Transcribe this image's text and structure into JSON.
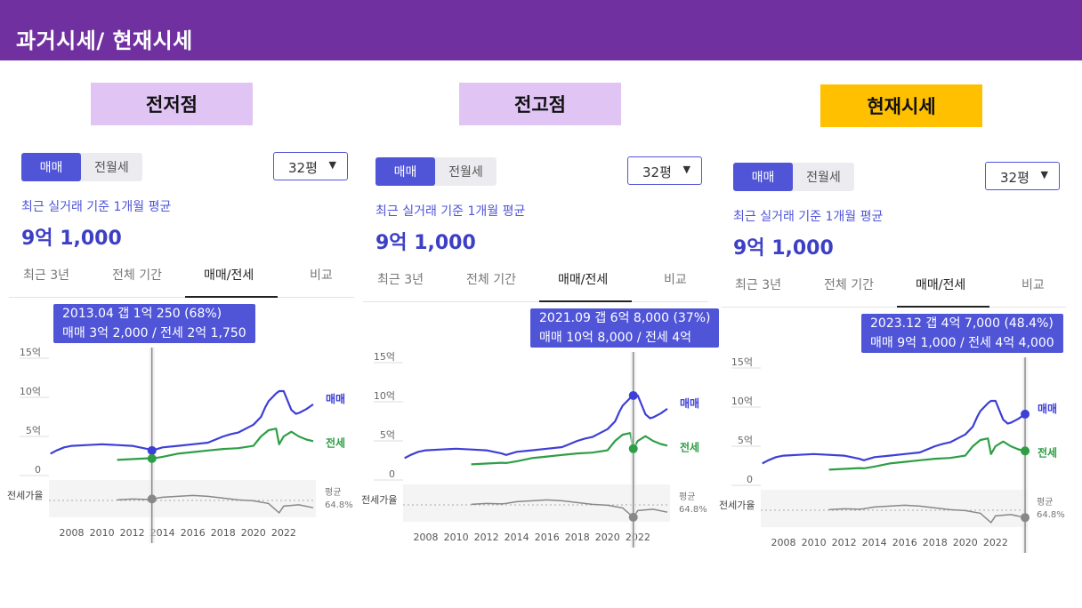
{
  "header": {
    "title": "과거시세/ 현재시세"
  },
  "common": {
    "toggle_sale": "매매",
    "toggle_rent": "전월세",
    "size_value": "32평",
    "avg_label": "최근 실거래 기준 1개월 평균",
    "price": "9억 1,000",
    "tabs": [
      "최근 3년",
      "전체 기간",
      "매매/전세",
      "비교"
    ],
    "series_sale": "매매",
    "series_jeonse": "전세",
    "ratio_label": "전세가율",
    "avg_word": "평균",
    "avg_ratio": "64.8%",
    "y_ticks": [
      "15억",
      "10억",
      "5억",
      "0"
    ],
    "x_ticks": [
      "2008",
      "2010",
      "2012",
      "2014",
      "2016",
      "2018",
      "2020",
      "2022"
    ]
  },
  "colors": {
    "header": "#7030a0",
    "accent": "#5055d8",
    "sale_line": "#3d3fd6",
    "jeonse_line": "#2e9e45",
    "ratio_line": "#888888",
    "highlight_yellow": "#ffc000",
    "highlight_lavender": "#e0c4f4"
  },
  "panels": [
    {
      "label": "전저점",
      "label_color": "#e0c4f4",
      "tooltip": {
        "line1": "2013.04  갭 1억 250 (68%)",
        "line2": "매매 3억 2,000 / 전세 2억 1,750"
      },
      "marker_x": 2013.3,
      "marker_sale": 3.2,
      "marker_jeonse": 2.175,
      "marker_ratio": 68
    },
    {
      "label": "전고점",
      "label_color": "#e0c4f4",
      "tooltip": {
        "line1": "2021.09  갭 6억 8,000 (37%)",
        "line2": "매매 10억 8,000 / 전세 4억"
      },
      "marker_x": 2021.7,
      "marker_sale": 10.8,
      "marker_jeonse": 4.0,
      "marker_ratio": 37
    },
    {
      "label": "현재시세",
      "label_color": "#ffc000",
      "tooltip": {
        "line1": "2023.12  갭 4억 7,000 (48.4%)",
        "line2": "매매 9억 1,000 / 전세 4억 4,000"
      },
      "marker_x": 2023.95,
      "marker_sale": 9.1,
      "marker_jeonse": 4.4,
      "marker_ratio": 48.4
    }
  ],
  "chart_data": [
    {
      "type": "line",
      "title": "",
      "xlabel": "",
      "ylabel": "",
      "ylim": [
        0,
        15
      ],
      "xlim": [
        2006.5,
        2024.3
      ],
      "series": [
        {
          "name": "매매",
          "x": [
            2006.6,
            2007,
            2007.5,
            2008,
            2009,
            2010,
            2011,
            2012,
            2013,
            2013.3,
            2014,
            2015,
            2016,
            2017,
            2018,
            2018.5,
            2019,
            2019.5,
            2020,
            2020.5,
            2020.8,
            2021,
            2021.5,
            2021.7,
            2022,
            2022.5,
            2022.8,
            2023,
            2023.5,
            2023.95
          ],
          "values": [
            2.8,
            3.2,
            3.6,
            3.8,
            3.9,
            4.0,
            3.9,
            3.8,
            3.4,
            3.2,
            3.6,
            3.8,
            4.0,
            4.2,
            5.0,
            5.3,
            5.5,
            6.0,
            6.5,
            7.5,
            8.8,
            9.5,
            10.5,
            10.8,
            10.8,
            8.4,
            7.9,
            8.0,
            8.5,
            9.1
          ]
        },
        {
          "name": "전세",
          "x": [
            2011,
            2012,
            2013,
            2013.3,
            2014,
            2015,
            2016,
            2017,
            2018,
            2019,
            2020,
            2020.5,
            2021,
            2021.5,
            2021.7,
            2022,
            2022.5,
            2023,
            2023.5,
            2023.95
          ],
          "values": [
            2.0,
            2.1,
            2.2,
            2.175,
            2.4,
            2.8,
            3.0,
            3.2,
            3.4,
            3.5,
            3.8,
            5.0,
            5.8,
            6.0,
            4.0,
            5.0,
            5.6,
            5.0,
            4.6,
            4.4
          ]
        }
      ]
    },
    {
      "type": "line",
      "title": "전세가율",
      "xlabel": "",
      "ylabel": "",
      "series": [
        {
          "name": "전세가율",
          "x": [
            2011,
            2012,
            2013,
            2013.3,
            2014,
            2015,
            2016,
            2017,
            2018,
            2019,
            2020,
            2021,
            2021.7,
            2022,
            2023,
            2023.95
          ],
          "values": [
            66,
            68,
            67,
            68,
            72,
            74,
            76,
            74,
            70,
            66,
            64,
            58,
            37,
            52,
            55,
            48.4
          ]
        }
      ],
      "average": 64.8
    }
  ]
}
